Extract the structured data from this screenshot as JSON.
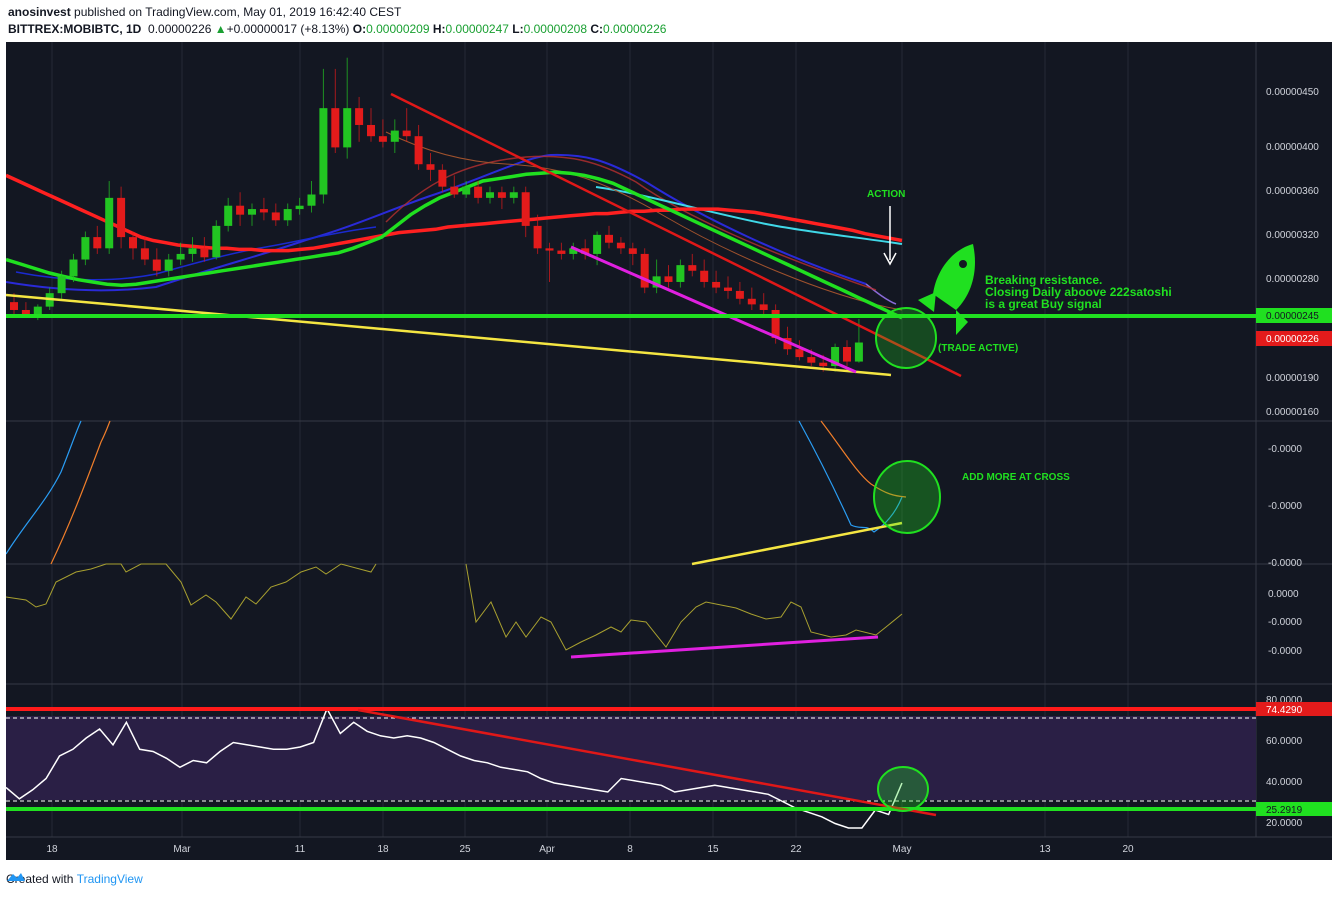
{
  "header": {
    "user": "anosinvest",
    "published_text": " published on TradingView.com, May 01, 2019 16:42:40 CEST",
    "symbol": "BITTREX:MOBIBTC, 1D",
    "last": "0.00000226",
    "change": "+0.00000017 (+8.13%)",
    "o_label": "O:",
    "o_value": "0.00000209",
    "h_label": "H:",
    "h_value": "0.00000247",
    "l_label": "L:",
    "l_value": "0.00000208",
    "c_label": "C:",
    "c_value": "0.00000226"
  },
  "footer": {
    "created_with": "Created with",
    "brand": "TradingView"
  },
  "colors": {
    "background": "#131722",
    "up": "#22c522",
    "down": "#e31b1b",
    "green_line": "#20e020",
    "red_line": "#ff2020"
  },
  "annotations": {
    "action": "ACTION",
    "breaking_1": "Breaking resistance.",
    "breaking_2": "Closing Daily aboove 222satoshi",
    "breaking_3": "is a great Buy signal",
    "trade_active": "(TRADE ACTIVE)",
    "add_more": "ADD MORE AT CROSS"
  },
  "chart_data": [
    {
      "type": "candlestick",
      "title": "BITTREX:MOBIBTC, 1D",
      "price_axis_ticks": [
        "0.00000450",
        "0.00000400",
        "0.00000360",
        "0.00000320",
        "0.00000280",
        "0.00000245",
        "0.00000226",
        "0.00000190",
        "0.00000160"
      ],
      "ylim": [
        1.56e-06,
        4.94e-06
      ],
      "time_axis_ticks": [
        "18",
        "Mar",
        "11",
        "18",
        "25",
        "Apr",
        "8",
        "15",
        "22",
        "May",
        "13",
        "20"
      ],
      "price_labels": {
        "horizontal_support": "0.00000245",
        "last": "0.00000226"
      },
      "candles": [
        {
          "o": 2.62,
          "h": 2.7,
          "l": 2.5,
          "c": 2.55
        },
        {
          "o": 2.55,
          "h": 2.62,
          "l": 2.48,
          "c": 2.5
        },
        {
          "o": 2.5,
          "h": 2.6,
          "l": 2.46,
          "c": 2.58
        },
        {
          "o": 2.58,
          "h": 2.75,
          "l": 2.55,
          "c": 2.7
        },
        {
          "o": 2.7,
          "h": 2.9,
          "l": 2.65,
          "c": 2.85
        },
        {
          "o": 2.85,
          "h": 3.05,
          "l": 2.8,
          "c": 3.0
        },
        {
          "o": 3.0,
          "h": 3.25,
          "l": 2.95,
          "c": 3.2
        },
        {
          "o": 3.2,
          "h": 3.3,
          "l": 3.05,
          "c": 3.1
        },
        {
          "o": 3.1,
          "h": 3.7,
          "l": 3.05,
          "c": 3.55
        },
        {
          "o": 3.55,
          "h": 3.65,
          "l": 3.1,
          "c": 3.2
        },
        {
          "o": 3.2,
          "h": 3.25,
          "l": 3.0,
          "c": 3.1
        },
        {
          "o": 3.1,
          "h": 3.2,
          "l": 2.95,
          "c": 3.0
        },
        {
          "o": 3.0,
          "h": 3.1,
          "l": 2.85,
          "c": 2.9
        },
        {
          "o": 2.9,
          "h": 3.05,
          "l": 2.85,
          "c": 3.0
        },
        {
          "o": 3.0,
          "h": 3.15,
          "l": 2.95,
          "c": 3.05
        },
        {
          "o": 3.05,
          "h": 3.2,
          "l": 2.98,
          "c": 3.1
        },
        {
          "o": 3.1,
          "h": 3.2,
          "l": 2.98,
          "c": 3.02
        },
        {
          "o": 3.02,
          "h": 3.35,
          "l": 3.0,
          "c": 3.3
        },
        {
          "o": 3.3,
          "h": 3.55,
          "l": 3.25,
          "c": 3.48
        },
        {
          "o": 3.48,
          "h": 3.6,
          "l": 3.3,
          "c": 3.4
        },
        {
          "o": 3.4,
          "h": 3.5,
          "l": 3.3,
          "c": 3.45
        },
        {
          "o": 3.45,
          "h": 3.55,
          "l": 3.35,
          "c": 3.42
        },
        {
          "o": 3.42,
          "h": 3.5,
          "l": 3.3,
          "c": 3.35
        },
        {
          "o": 3.35,
          "h": 3.5,
          "l": 3.3,
          "c": 3.45
        },
        {
          "o": 3.45,
          "h": 3.55,
          "l": 3.4,
          "c": 3.48
        },
        {
          "o": 3.48,
          "h": 3.7,
          "l": 3.42,
          "c": 3.58
        },
        {
          "o": 3.58,
          "h": 4.7,
          "l": 3.5,
          "c": 4.35
        },
        {
          "o": 4.35,
          "h": 4.7,
          "l": 3.95,
          "c": 4.0
        },
        {
          "o": 4.0,
          "h": 4.8,
          "l": 3.9,
          "c": 4.35
        },
        {
          "o": 4.35,
          "h": 4.45,
          "l": 4.05,
          "c": 4.2
        },
        {
          "o": 4.2,
          "h": 4.35,
          "l": 4.05,
          "c": 4.1
        },
        {
          "o": 4.1,
          "h": 4.25,
          "l": 4.0,
          "c": 4.05
        },
        {
          "o": 4.05,
          "h": 4.25,
          "l": 3.95,
          "c": 4.15
        },
        {
          "o": 4.15,
          "h": 4.35,
          "l": 4.05,
          "c": 4.1
        },
        {
          "o": 4.1,
          "h": 4.2,
          "l": 3.8,
          "c": 3.85
        },
        {
          "o": 3.85,
          "h": 3.95,
          "l": 3.7,
          "c": 3.8
        },
        {
          "o": 3.8,
          "h": 3.85,
          "l": 3.6,
          "c": 3.65
        },
        {
          "o": 3.65,
          "h": 3.75,
          "l": 3.55,
          "c": 3.58
        },
        {
          "o": 3.58,
          "h": 3.7,
          "l": 3.55,
          "c": 3.65
        },
        {
          "o": 3.65,
          "h": 3.7,
          "l": 3.5,
          "c": 3.55
        },
        {
          "o": 3.55,
          "h": 3.65,
          "l": 3.5,
          "c": 3.6
        },
        {
          "o": 3.6,
          "h": 3.65,
          "l": 3.45,
          "c": 3.55
        },
        {
          "o": 3.55,
          "h": 3.65,
          "l": 3.5,
          "c": 3.6
        },
        {
          "o": 3.6,
          "h": 3.65,
          "l": 3.2,
          "c": 3.3
        },
        {
          "o": 3.3,
          "h": 3.4,
          "l": 3.05,
          "c": 3.1
        },
        {
          "o": 3.1,
          "h": 3.15,
          "l": 2.8,
          "c": 3.08
        },
        {
          "o": 3.08,
          "h": 3.15,
          "l": 3.0,
          "c": 3.05
        },
        {
          "o": 3.05,
          "h": 3.15,
          "l": 3.0,
          "c": 3.1
        },
        {
          "o": 3.1,
          "h": 3.18,
          "l": 3.0,
          "c": 3.05
        },
        {
          "o": 3.05,
          "h": 3.25,
          "l": 2.95,
          "c": 3.22
        },
        {
          "o": 3.22,
          "h": 3.3,
          "l": 3.1,
          "c": 3.15
        },
        {
          "o": 3.15,
          "h": 3.2,
          "l": 3.05,
          "c": 3.1
        },
        {
          "o": 3.1,
          "h": 3.15,
          "l": 2.95,
          "c": 3.05
        },
        {
          "o": 3.05,
          "h": 3.1,
          "l": 2.7,
          "c": 2.75
        },
        {
          "o": 2.75,
          "h": 3.0,
          "l": 2.7,
          "c": 2.85
        },
        {
          "o": 2.85,
          "h": 2.95,
          "l": 2.75,
          "c": 2.8
        },
        {
          "o": 2.8,
          "h": 3.0,
          "l": 2.75,
          "c": 2.95
        },
        {
          "o": 2.95,
          "h": 3.05,
          "l": 2.85,
          "c": 2.9
        },
        {
          "o": 2.9,
          "h": 3.0,
          "l": 2.75,
          "c": 2.8
        },
        {
          "o": 2.8,
          "h": 2.9,
          "l": 2.7,
          "c": 2.75
        },
        {
          "o": 2.75,
          "h": 2.85,
          "l": 2.65,
          "c": 2.72
        },
        {
          "o": 2.72,
          "h": 2.8,
          "l": 2.6,
          "c": 2.65
        },
        {
          "o": 2.65,
          "h": 2.75,
          "l": 2.55,
          "c": 2.6
        },
        {
          "o": 2.6,
          "h": 2.7,
          "l": 2.5,
          "c": 2.55
        },
        {
          "o": 2.55,
          "h": 2.6,
          "l": 2.25,
          "c": 2.3
        },
        {
          "o": 2.3,
          "h": 2.4,
          "l": 2.15,
          "c": 2.2
        },
        {
          "o": 2.2,
          "h": 2.28,
          "l": 2.1,
          "c": 2.13
        },
        {
          "o": 2.13,
          "h": 2.2,
          "l": 2.05,
          "c": 2.08
        },
        {
          "o": 2.08,
          "h": 2.15,
          "l": 2.0,
          "c": 2.05
        },
        {
          "o": 2.05,
          "h": 2.25,
          "l": 2.0,
          "c": 2.22
        },
        {
          "o": 2.22,
          "h": 2.28,
          "l": 2.05,
          "c": 2.09
        },
        {
          "o": 2.09,
          "h": 2.47,
          "l": 2.08,
          "c": 2.26
        }
      ],
      "series": [
        {
          "name": "",
          "color": "#e31b1b",
          "values": [
            3.75,
            3.7,
            3.65,
            3.6,
            3.55,
            3.5,
            3.45,
            3.4,
            3.35,
            3.3,
            3.25,
            3.2,
            3.17,
            3.15,
            3.13,
            3.12,
            3.11,
            3.1,
            3.1,
            3.09,
            3.09,
            3.08,
            3.08,
            3.08,
            3.09,
            3.1,
            3.12,
            3.14,
            3.16,
            3.18,
            3.2,
            3.22,
            3.24,
            3.25,
            3.26,
            3.27,
            3.29,
            3.3,
            3.31,
            3.32,
            3.33,
            3.34,
            3.35,
            3.36,
            3.37,
            3.38,
            3.39,
            3.4,
            3.41,
            3.41,
            3.42,
            3.43,
            3.43,
            3.44,
            3.44,
            3.45,
            3.45,
            3.45,
            3.45,
            3.44,
            3.43,
            3.42,
            3.4,
            3.38,
            3.36,
            3.34,
            3.32,
            3.3,
            3.28,
            3.26,
            3.23,
            3.21,
            3.19,
            3.17
          ]
        },
        {
          "name": "",
          "color": "#20e020",
          "values": [
            3.0,
            2.96,
            2.92,
            2.88,
            2.85,
            2.82,
            2.8,
            2.78,
            2.77,
            2.78,
            2.8,
            2.82,
            2.84,
            2.86,
            2.88,
            2.9,
            2.92,
            2.94,
            2.96,
            2.98,
            3.0,
            3.02,
            3.04,
            3.06,
            3.1,
            3.15,
            3.2,
            3.3,
            3.4,
            3.48,
            3.55,
            3.6,
            3.65,
            3.7,
            3.72,
            3.74,
            3.76,
            3.77,
            3.78,
            3.77,
            3.75,
            3.72,
            3.68,
            3.62,
            3.56,
            3.5,
            3.44,
            3.38,
            3.32,
            3.26,
            3.2,
            3.14,
            3.08,
            3.02,
            2.96,
            2.9,
            2.84,
            2.78,
            2.72,
            2.66,
            2.6,
            2.54,
            2.48
          ]
        }
      ]
    },
    {
      "type": "line",
      "panel": "oscillator-2",
      "tick_labels": [
        "-0.0000",
        "-0.0000",
        "-0.0000"
      ]
    },
    {
      "type": "line",
      "panel": "oscillator-3",
      "tick_labels": [
        "0.0000",
        "-0.0000",
        "-0.0000"
      ]
    },
    {
      "type": "line",
      "panel": "rsi",
      "tick_labels": [
        "80.0000",
        "60.0000",
        "40.0000",
        "20.0000"
      ],
      "ylim": [
        16,
        84
      ],
      "level_labels": {
        "upper": "74.4290",
        "lower": "25.2919"
      },
      "values": [
        38,
        33,
        37,
        42,
        52,
        55,
        60,
        64,
        57,
        67,
        55,
        54,
        51,
        47,
        50,
        49,
        54,
        58,
        57,
        56,
        55,
        55,
        56,
        58,
        73,
        62,
        67,
        63,
        61,
        60,
        61,
        60,
        58,
        55,
        52,
        50,
        49,
        47,
        46,
        45,
        42,
        40,
        39,
        38,
        37,
        36,
        42,
        41,
        40,
        39,
        36,
        37,
        38,
        39,
        38,
        37,
        36,
        35,
        32,
        29,
        27,
        25,
        22,
        20,
        20,
        28,
        26,
        40
      ]
    }
  ]
}
